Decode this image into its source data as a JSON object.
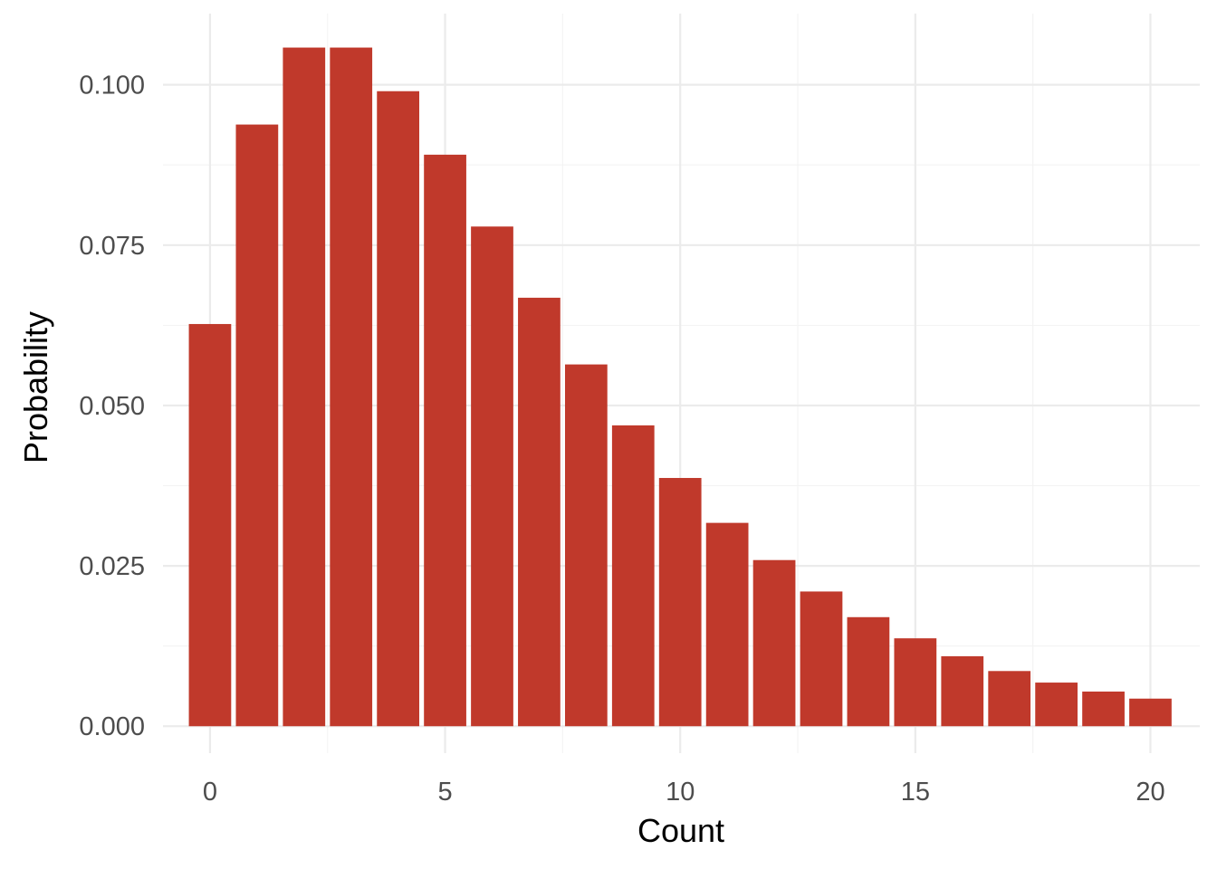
{
  "chart_data": {
    "type": "bar",
    "title": "",
    "xlabel": "Count",
    "ylabel": "Probability",
    "x": [
      0,
      1,
      2,
      3,
      4,
      5,
      6,
      7,
      8,
      9,
      10,
      11,
      12,
      13,
      14,
      15,
      16,
      17,
      18,
      19,
      20
    ],
    "values": [
      0.0627,
      0.0938,
      0.1058,
      0.1058,
      0.099,
      0.0891,
      0.0779,
      0.0668,
      0.0564,
      0.0469,
      0.0387,
      0.0317,
      0.0259,
      0.021,
      0.017,
      0.0137,
      0.0109,
      0.0086,
      0.0068,
      0.0054,
      0.0043
    ],
    "xlim": [
      -1,
      21.05
    ],
    "ylim": [
      -0.0042,
      0.1111
    ],
    "x_ticks": [
      0,
      5,
      10,
      15,
      20
    ],
    "x_tick_labels": [
      "0",
      "5",
      "10",
      "15",
      "20"
    ],
    "y_ticks": [
      0,
      0.025,
      0.05,
      0.075,
      0.1
    ],
    "y_tick_labels": [
      "0.000",
      "0.025",
      "0.050",
      "0.075",
      "0.100"
    ],
    "grid": true,
    "legend": "none",
    "bar_color": "#c0392b"
  }
}
